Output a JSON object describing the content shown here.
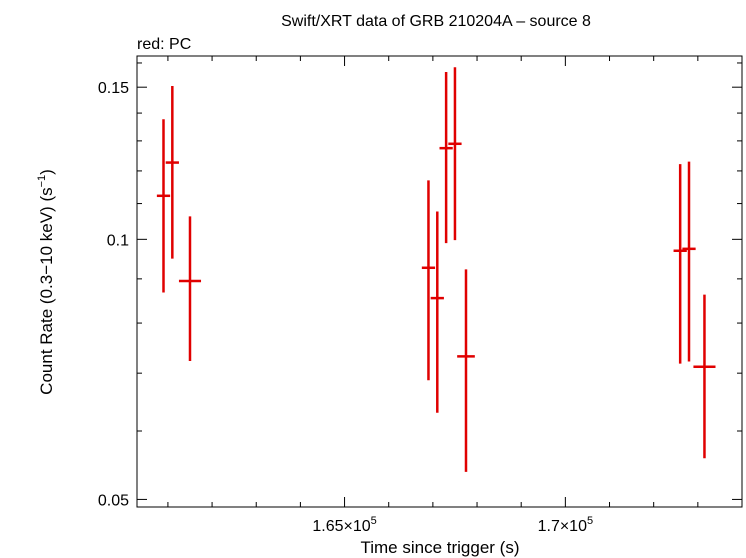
{
  "chart_data": {
    "type": "scatter",
    "title": "Swift/XRT data of GRB 210204A – source 8",
    "subtitle": "red: PC",
    "xlabel": "Time since trigger (s)",
    "ylabel": "Count Rate (0.3−10 keV) (s",
    "ylabel_sup": "−1",
    "ylabel_end": ")",
    "xlim": [
      160300,
      174000
    ],
    "ylim": [
      0.049,
      0.163
    ],
    "x_ticks": [
      {
        "value": 165000,
        "mantissa": "1.65×10",
        "exp": "5"
      },
      {
        "value": 170000,
        "mantissa": "1.7×10",
        "exp": "5"
      }
    ],
    "y_ticks": [
      {
        "value": 0.05,
        "label": "0.05"
      },
      {
        "value": 0.1,
        "label": "0.1"
      },
      {
        "value": 0.15,
        "label": "0.15"
      }
    ],
    "series": [
      {
        "color": "#e00000",
        "points": [
          {
            "x": 160900,
            "xerr": 150,
            "y": 0.1123,
            "ylo": 0.0868,
            "yhi": 0.1377
          },
          {
            "x": 161100,
            "xerr": 150,
            "y": 0.1227,
            "ylo": 0.095,
            "yhi": 0.1505
          },
          {
            "x": 161500,
            "xerr": 250,
            "y": 0.0895,
            "ylo": 0.0723,
            "yhi": 0.1063
          },
          {
            "x": 166900,
            "xerr": 150,
            "y": 0.0927,
            "ylo": 0.0687,
            "yhi": 0.117
          },
          {
            "x": 167100,
            "xerr": 150,
            "y": 0.0855,
            "ylo": 0.063,
            "yhi": 0.1077
          },
          {
            "x": 167300,
            "xerr": 150,
            "y": 0.1275,
            "ylo": 0.099,
            "yhi": 0.1562
          },
          {
            "x": 167500,
            "xerr": 150,
            "y": 0.129,
            "ylo": 0.0998,
            "yhi": 0.1582
          },
          {
            "x": 167750,
            "xerr": 200,
            "y": 0.0732,
            "ylo": 0.0538,
            "yhi": 0.0923
          },
          {
            "x": 172600,
            "xerr": 150,
            "y": 0.097,
            "ylo": 0.0718,
            "yhi": 0.1222
          },
          {
            "x": 172800,
            "xerr": 150,
            "y": 0.0975,
            "ylo": 0.0722,
            "yhi": 0.123
          },
          {
            "x": 173150,
            "xerr": 250,
            "y": 0.0712,
            "ylo": 0.0558,
            "yhi": 0.0863
          }
        ]
      }
    ]
  }
}
